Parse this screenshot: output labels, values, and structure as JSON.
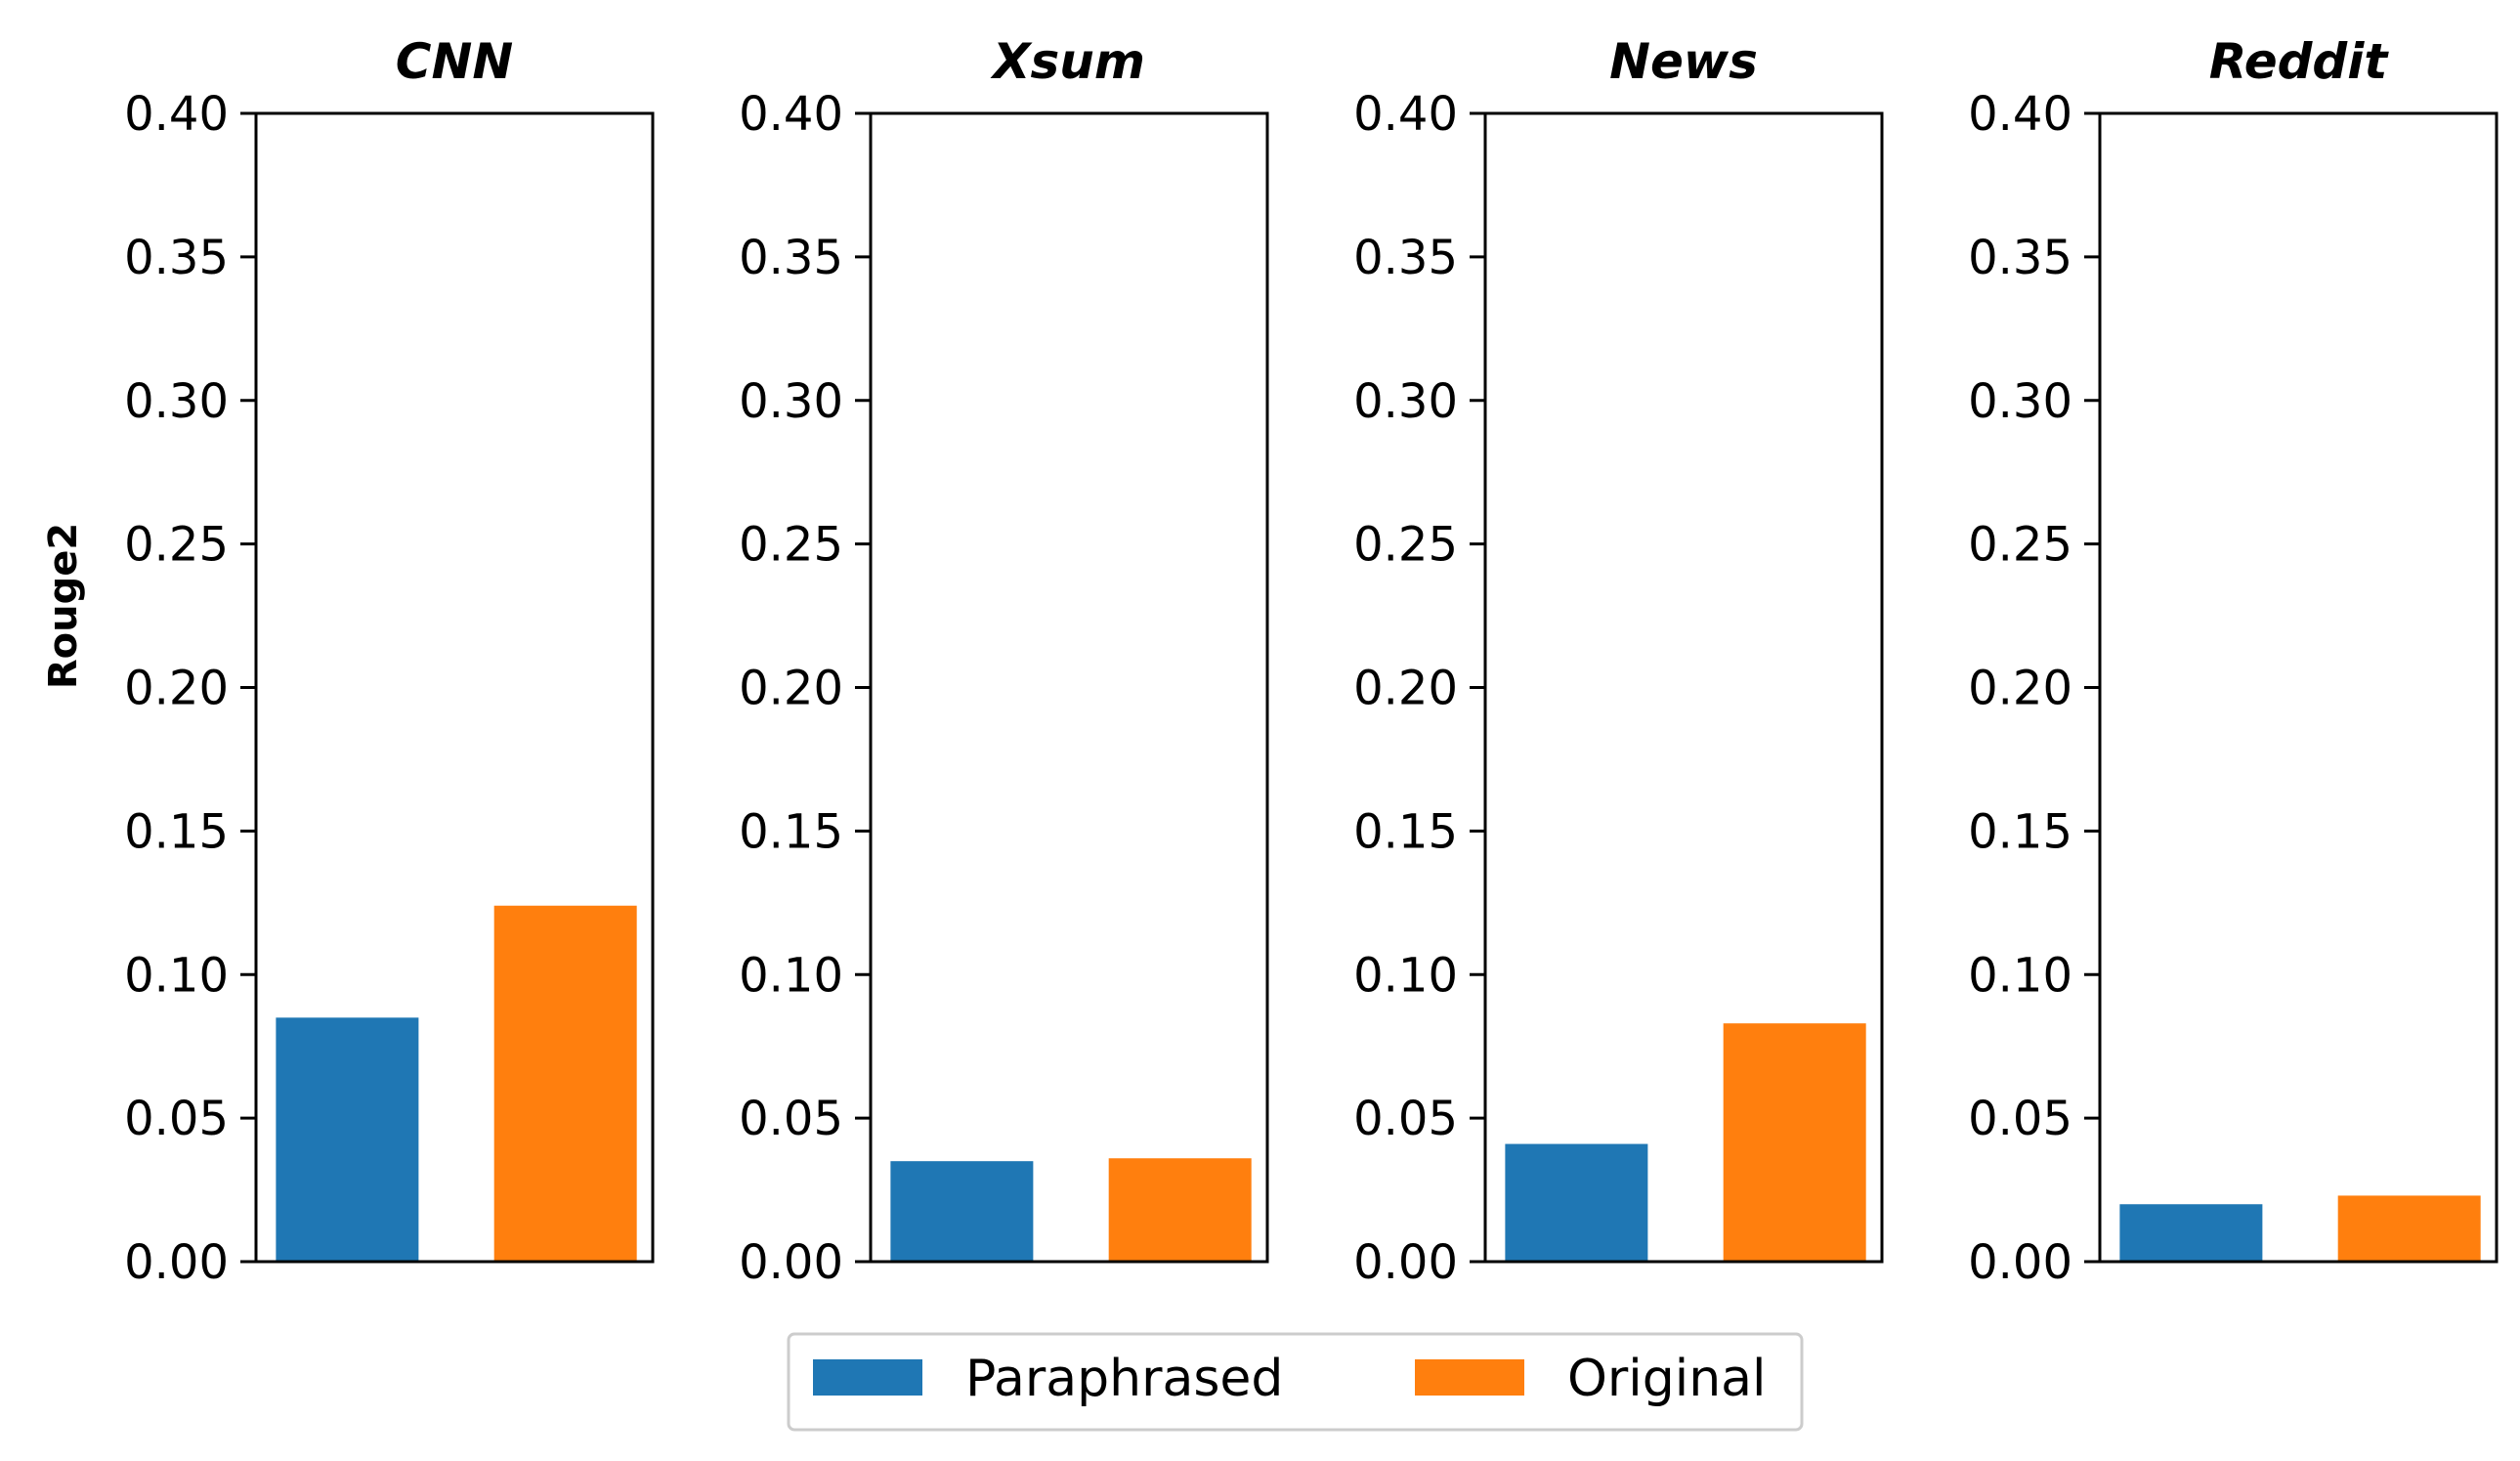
{
  "chart_data": {
    "type": "bar",
    "ylabel": "Rouge2",
    "ylim": [
      0,
      0.4
    ],
    "yticks": [
      "0.00",
      "0.05",
      "0.10",
      "0.15",
      "0.20",
      "0.25",
      "0.30",
      "0.35",
      "0.40"
    ],
    "grid": false,
    "legend_position": "bottom-center",
    "series": [
      {
        "name": "Paraphrased",
        "color": "#1f77b4"
      },
      {
        "name": "Original",
        "color": "#ff7f0e"
      }
    ],
    "panels": [
      {
        "title": "CNN",
        "values": [
          0.085,
          0.124
        ]
      },
      {
        "title": "Xsum",
        "values": [
          0.035,
          0.036
        ]
      },
      {
        "title": "News",
        "values": [
          0.041,
          0.083
        ]
      },
      {
        "title": "Reddit",
        "values": [
          0.02,
          0.023
        ]
      }
    ]
  }
}
